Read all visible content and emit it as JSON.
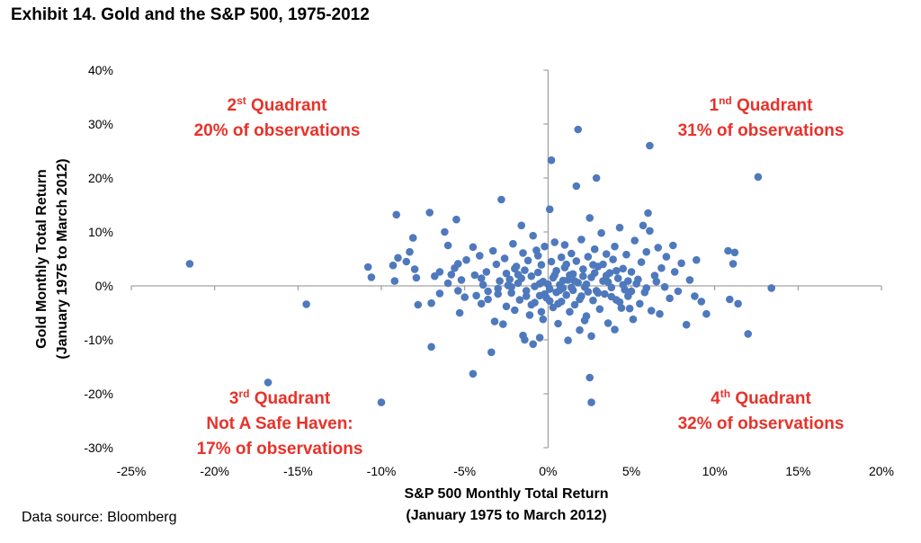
{
  "title": "Exhibit 14. Gold and the S&P 500, 1975-2012",
  "source": "Data source: Bloomberg",
  "chart_data": {
    "type": "scatter",
    "title": "Exhibit 14. Gold and the S&P 500, 1975-2012",
    "xlabel_lines": [
      "S&P 500 Monthly Total Return",
      "(January 1975 to March 2012)"
    ],
    "ylabel_lines": [
      "Gold Monthly  Total Return",
      "(January 1975 to March 2012)"
    ],
    "xlim": [
      -25,
      20
    ],
    "ylim": [
      -30,
      40
    ],
    "x_ticks": [
      -25,
      -20,
      -15,
      -10,
      -5,
      0,
      5,
      10,
      15,
      20
    ],
    "x_tick_labels": [
      "-25%",
      "-20%",
      "-15%",
      "-10%",
      "-5%",
      "0%",
      "5%",
      "10%",
      "15%",
      "20%"
    ],
    "y_ticks": [
      -30,
      -20,
      -10,
      0,
      10,
      20,
      30,
      40
    ],
    "y_tick_labels": [
      "-30%",
      "-20%",
      "-10%",
      "0%",
      "10%",
      "20%",
      "30%",
      "40%"
    ],
    "grid": false,
    "marker_color": "#4f79bd",
    "annotation_color": "#e8322a",
    "annotations": [
      {
        "id": "q1",
        "line1_main": "1",
        "line1_sup": "nd",
        "line1_rest": " Quadrant",
        "line2": "31% of observations",
        "line3": ""
      },
      {
        "id": "q2",
        "line1_main": "2",
        "line1_sup": "st",
        "line1_rest": " Quadrant",
        "line2": "20% of observations",
        "line3": ""
      },
      {
        "id": "q3",
        "line1_main": "3",
        "line1_sup": "rd",
        "line1_rest": " Quadrant",
        "line2": "Not A Safe Haven:",
        "line3": "17% of observations"
      },
      {
        "id": "q4",
        "line1_main": "4",
        "line1_sup": "th",
        "line1_rest": " Quadrant",
        "line2": "32% of observations",
        "line3": ""
      }
    ],
    "points": [
      [
        -21.5,
        4.1
      ],
      [
        -16.8,
        -17.9
      ],
      [
        -14.5,
        -3.4
      ],
      [
        -10.0,
        -21.6
      ],
      [
        -10.8,
        3.5
      ],
      [
        -10.6,
        1.6
      ],
      [
        -9.1,
        13.2
      ],
      [
        -9.0,
        5.2
      ],
      [
        -9.2,
        0.9
      ],
      [
        -9.3,
        3.8
      ],
      [
        -8.5,
        4.5
      ],
      [
        -8.1,
        8.9
      ],
      [
        -8.3,
        6.3
      ],
      [
        -8.0,
        3.1
      ],
      [
        -7.9,
        1.5
      ],
      [
        -7.8,
        -3.5
      ],
      [
        -7.1,
        13.6
      ],
      [
        -7.0,
        -11.3
      ],
      [
        -7.0,
        -3.2
      ],
      [
        -6.8,
        1.8
      ],
      [
        -6.5,
        -1.4
      ],
      [
        -6.5,
        2.6
      ],
      [
        -6.2,
        10.0
      ],
      [
        -6.0,
        7.5
      ],
      [
        -6.0,
        0.5
      ],
      [
        -5.8,
        2.1
      ],
      [
        -5.6,
        3.3
      ],
      [
        -5.5,
        12.3
      ],
      [
        -5.4,
        4.1
      ],
      [
        -5.4,
        -0.9
      ],
      [
        -5.3,
        -5.0
      ],
      [
        -5.2,
        1.1
      ],
      [
        -5.0,
        -2.1
      ],
      [
        -4.9,
        4.8
      ],
      [
        -4.5,
        -16.3
      ],
      [
        -4.5,
        7.2
      ],
      [
        -4.4,
        2.0
      ],
      [
        -4.3,
        -1.8
      ],
      [
        -4.1,
        5.6
      ],
      [
        -4.0,
        -3.3
      ],
      [
        -4.0,
        1.4
      ],
      [
        -3.9,
        0.2
      ],
      [
        -3.7,
        2.6
      ],
      [
        -3.6,
        -1.0
      ],
      [
        -3.4,
        -12.3
      ],
      [
        -3.3,
        6.5
      ],
      [
        -3.2,
        -6.6
      ],
      [
        -3.1,
        4.0
      ],
      [
        -3.0,
        -1.5
      ],
      [
        -2.9,
        0.9
      ],
      [
        -2.8,
        16.0
      ],
      [
        -2.7,
        -7.1
      ],
      [
        -2.6,
        5.1
      ],
      [
        -2.5,
        2.3
      ],
      [
        -2.5,
        -3.8
      ],
      [
        -2.3,
        1.2
      ],
      [
        -2.2,
        -0.2
      ],
      [
        -2.1,
        7.8
      ],
      [
        -2.0,
        -4.5
      ],
      [
        -1.9,
        3.6
      ],
      [
        -1.8,
        0.5
      ],
      [
        -1.7,
        -2.6
      ],
      [
        -1.6,
        11.2
      ],
      [
        -1.5,
        6.1
      ],
      [
        -1.5,
        -9.2
      ],
      [
        -1.4,
        -10.0
      ],
      [
        -1.4,
        2.9
      ],
      [
        -1.3,
        -0.9
      ],
      [
        -1.2,
        4.7
      ],
      [
        -1.1,
        -5.4
      ],
      [
        -1.0,
        1.8
      ],
      [
        -0.9,
        -10.8
      ],
      [
        -0.9,
        9.3
      ],
      [
        -0.8,
        -3.1
      ],
      [
        -0.8,
        -0.1
      ],
      [
        -0.7,
        6.6
      ],
      [
        -0.6,
        2.5
      ],
      [
        -0.5,
        -9.6
      ],
      [
        -0.5,
        -1.8
      ],
      [
        -0.4,
        3.9
      ],
      [
        -0.3,
        -6.2
      ],
      [
        -0.3,
        0.8
      ],
      [
        -0.2,
        7.3
      ],
      [
        -0.1,
        -2.2
      ],
      [
        0.1,
        14.2
      ],
      [
        0.1,
        -0.6
      ],
      [
        0.2,
        23.3
      ],
      [
        0.2,
        4.5
      ],
      [
        0.3,
        -4.0
      ],
      [
        0.3,
        1.5
      ],
      [
        0.4,
        8.1
      ],
      [
        0.5,
        -1.2
      ],
      [
        0.5,
        2.8
      ],
      [
        0.6,
        -7.0
      ],
      [
        0.7,
        0.2
      ],
      [
        0.8,
        5.3
      ],
      [
        0.8,
        -2.9
      ],
      [
        0.9,
        -0.4
      ],
      [
        1.0,
        3.4
      ],
      [
        1.0,
        7.6
      ],
      [
        1.1,
        -1.7
      ],
      [
        1.2,
        -10.1
      ],
      [
        1.2,
        1.1
      ],
      [
        1.3,
        -4.8
      ],
      [
        1.4,
        6.0
      ],
      [
        1.5,
        -0.8
      ],
      [
        1.5,
        2.2
      ],
      [
        1.6,
        -3.5
      ],
      [
        1.7,
        4.6
      ],
      [
        1.7,
        18.5
      ],
      [
        1.8,
        0.6
      ],
      [
        1.8,
        29.0
      ],
      [
        1.9,
        -8.2
      ],
      [
        2.0,
        -1.9
      ],
      [
        2.0,
        8.6
      ],
      [
        2.1,
        3.1
      ],
      [
        2.2,
        -0.2
      ],
      [
        2.3,
        -5.6
      ],
      [
        2.4,
        5.4
      ],
      [
        2.5,
        12.6
      ],
      [
        2.5,
        -17.0
      ],
      [
        2.6,
        -21.6
      ],
      [
        2.6,
        -9.3
      ],
      [
        2.6,
        1.6
      ],
      [
        2.7,
        -2.7
      ],
      [
        2.8,
        6.8
      ],
      [
        2.9,
        20.0
      ],
      [
        2.9,
        -0.9
      ],
      [
        3.0,
        3.6
      ],
      [
        3.1,
        -4.3
      ],
      [
        3.2,
        9.8
      ],
      [
        3.3,
        0.9
      ],
      [
        3.4,
        -1.5
      ],
      [
        3.5,
        5.9
      ],
      [
        3.6,
        -6.9
      ],
      [
        3.7,
        2.4
      ],
      [
        3.8,
        -0.3
      ],
      [
        3.9,
        4.9
      ],
      [
        4.0,
        -8.1
      ],
      [
        4.0,
        7.3
      ],
      [
        4.1,
        -2.6
      ],
      [
        4.2,
        1.4
      ],
      [
        4.3,
        10.8
      ],
      [
        4.4,
        -4.1
      ],
      [
        4.5,
        3.2
      ],
      [
        4.6,
        -0.7
      ],
      [
        4.7,
        5.8
      ],
      [
        4.8,
        -1.9
      ],
      [
        5.0,
        2.6
      ],
      [
        5.1,
        -6.2
      ],
      [
        5.2,
        8.4
      ],
      [
        5.3,
        0.4
      ],
      [
        5.5,
        -3.3
      ],
      [
        5.6,
        4.4
      ],
      [
        5.7,
        11.2
      ],
      [
        5.8,
        -1.2
      ],
      [
        5.9,
        6.3
      ],
      [
        6.0,
        13.5
      ],
      [
        6.1,
        26.0
      ],
      [
        6.1,
        10.2
      ],
      [
        6.2,
        -4.6
      ],
      [
        6.4,
        1.9
      ],
      [
        6.6,
        7.1
      ],
      [
        6.7,
        -5.2
      ],
      [
        6.8,
        3.3
      ],
      [
        7.0,
        -0.2
      ],
      [
        7.1,
        5.4
      ],
      [
        7.3,
        -2.3
      ],
      [
        7.5,
        7.5
      ],
      [
        7.6,
        2.6
      ],
      [
        7.8,
        -1.0
      ],
      [
        8.0,
        4.2
      ],
      [
        8.3,
        -7.2
      ],
      [
        8.5,
        1.1
      ],
      [
        8.8,
        -1.9
      ],
      [
        8.9,
        4.8
      ],
      [
        9.2,
        -2.9
      ],
      [
        9.5,
        -5.2
      ],
      [
        10.8,
        6.5
      ],
      [
        10.9,
        -2.5
      ],
      [
        11.1,
        4.1
      ],
      [
        11.2,
        6.2
      ],
      [
        11.4,
        -3.3
      ],
      [
        12.0,
        -8.9
      ],
      [
        12.6,
        20.2
      ],
      [
        13.4,
        -0.4
      ],
      [
        -0.4,
        -4.8
      ],
      [
        0.6,
        -3.3
      ],
      [
        1.3,
        2.0
      ],
      [
        2.2,
        -6.4
      ],
      [
        3.3,
        4.0
      ],
      [
        4.5,
        0.2
      ],
      [
        -1.6,
        1.4
      ],
      [
        -0.5,
        0.4
      ],
      [
        0.9,
        1.0
      ],
      [
        1.9,
        -2.5
      ],
      [
        2.8,
        2.4
      ],
      [
        3.6,
        0.7
      ],
      [
        4.3,
        -3.0
      ],
      [
        5.4,
        1.2
      ],
      [
        -2.4,
        0.1
      ],
      [
        -1.3,
        -1.9
      ],
      [
        0.1,
        -2.8
      ],
      [
        1.1,
        4.0
      ],
      [
        2.3,
        0.3
      ],
      [
        3.0,
        -1.3
      ],
      [
        -3.6,
        -2.5
      ],
      [
        -2.0,
        3.2
      ],
      [
        -1.0,
        -3.5
      ],
      [
        0.4,
        2.0
      ],
      [
        1.6,
        0.9
      ],
      [
        2.4,
        -1.1
      ],
      [
        3.5,
        1.9
      ],
      [
        4.8,
        0.9
      ],
      [
        5.9,
        -0.4
      ],
      [
        6.5,
        0.8
      ],
      [
        -0.6,
        5.6
      ],
      [
        0.7,
        -0.8
      ],
      [
        1.4,
        -0.3
      ],
      [
        2.1,
        1.8
      ],
      [
        3.8,
        -2.0
      ],
      [
        4.9,
        -4.2
      ],
      [
        -1.8,
        2.1
      ],
      [
        -3.0,
        -0.5
      ],
      [
        0.0,
        0.3
      ],
      [
        2.7,
        3.9
      ],
      [
        4.1,
        2.8
      ],
      [
        5.0,
        -1.0
      ],
      [
        -2.2,
        -1.3
      ],
      [
        -0.2,
        -1.5
      ]
    ]
  }
}
